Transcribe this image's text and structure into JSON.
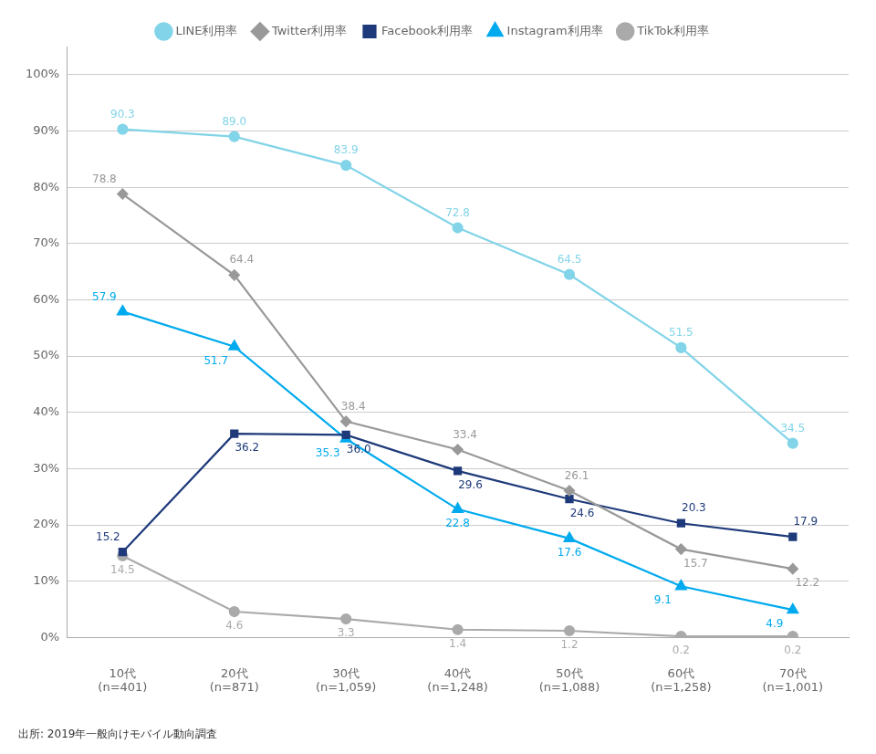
{
  "chart_data": {
    "type": "line",
    "categories": [
      "10代\n(n=401)",
      "20代\n(n=871)",
      "30代\n(n=1,059)",
      "40代\n(n=1,248)",
      "50代\n(n=1,088)",
      "60代\n(n=1,258)",
      "70代\n(n=1,001)"
    ],
    "series": [
      {
        "name": "LINE利用率",
        "color": "#82d4e8",
        "marker": "circle",
        "values": [
          90.3,
          89.0,
          83.9,
          72.8,
          64.5,
          51.5,
          34.5
        ],
        "value_labels": [
          "90.3",
          "89.0",
          "83.9",
          "72.8",
          "64.5",
          "51.5",
          "34.5"
        ]
      },
      {
        "name": "Twitter利用率",
        "color": "#999999",
        "marker": "diamond",
        "values": [
          78.8,
          64.4,
          38.4,
          33.4,
          26.1,
          15.7,
          12.2
        ],
        "value_labels": [
          "78.8",
          "64.4",
          "38.4",
          "33.4",
          "26.1",
          "15.7",
          "12.2"
        ]
      },
      {
        "name": "Facebook利用率",
        "color": "#1e3a7a",
        "marker": "square",
        "values": [
          15.2,
          36.2,
          36.0,
          29.6,
          24.6,
          20.3,
          17.9
        ],
        "value_labels": [
          "15.2",
          "36.2",
          "36.0",
          "29.6",
          "24.6",
          "20.3",
          "17.9"
        ]
      },
      {
        "name": "Instagram利用率",
        "color": "#00aaee",
        "marker": "triangle",
        "values": [
          57.9,
          51.7,
          35.3,
          22.8,
          17.6,
          9.1,
          4.9
        ],
        "value_labels": [
          "57.9",
          "51.7",
          "35.3",
          "22.8",
          "17.6",
          "9.1",
          "4.9"
        ]
      },
      {
        "name": "TikTok利用率",
        "color": "#aaaaaa",
        "marker": "circle",
        "values": [
          14.5,
          4.6,
          3.3,
          1.4,
          1.2,
          0.2,
          0.2
        ],
        "value_labels": [
          "14.5",
          "4.6",
          "3.3",
          "1.4",
          "1.2",
          "0.2",
          "0.2"
        ]
      }
    ],
    "ylim": [
      0,
      105
    ],
    "yticks": [
      {
        "value": 0,
        "label": "0%"
      },
      {
        "value": 10,
        "label": "10%"
      },
      {
        "value": 20,
        "label": "20%"
      },
      {
        "value": 30,
        "label": "30%"
      },
      {
        "value": 40,
        "label": "40%"
      },
      {
        "value": 50,
        "label": "50%"
      },
      {
        "value": 60,
        "label": "60%"
      },
      {
        "value": 70,
        "label": "70%"
      },
      {
        "value": 80,
        "label": "80%"
      },
      {
        "value": 90,
        "label": "90%"
      },
      {
        "value": 100,
        "label": "100%"
      }
    ],
    "grid": true,
    "legend": "top",
    "data_labels": true,
    "annotations": [
      "出所: 2019年一般向けモバイル動向調査"
    ]
  }
}
